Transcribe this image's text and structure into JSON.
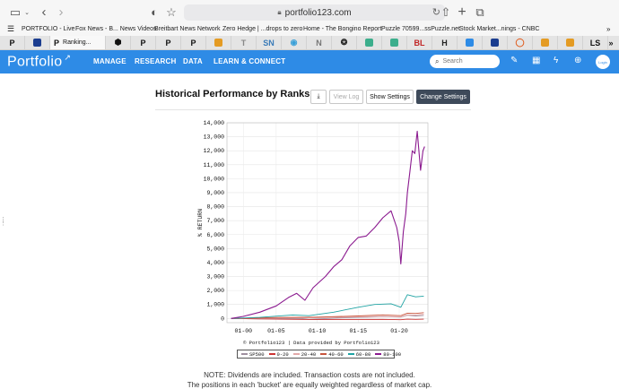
{
  "browser": {
    "url": "portfolio123.com",
    "bookmarks": [
      "PORTFOLIO - Live",
      "Fox News - B... News Videos",
      "Breitbart News Network",
      "Zero Hedge | ...drops to zero",
      "Home - The Bongino Report",
      "Puzzle 70599...ssPuzzle.net",
      "Stock Market...nings - CNBC"
    ],
    "tabs": [
      {
        "label": "P",
        "color": "#111111"
      },
      {
        "label": "",
        "color": "#1b3d8f"
      },
      {
        "label": "P",
        "color": "#111111",
        "active_label": "Ranking..."
      },
      {
        "label": "⬢",
        "color": "#111111"
      },
      {
        "label": "P",
        "color": "#111111"
      },
      {
        "label": "P",
        "color": "#111111"
      },
      {
        "label": "P",
        "color": "#111111"
      },
      {
        "label": "",
        "color": "#e49b23"
      },
      {
        "label": "T",
        "color": "#888888"
      },
      {
        "label": "SN",
        "color": "#3a7bb8"
      },
      {
        "label": "◉",
        "color": "#3aa0d8"
      },
      {
        "label": "N",
        "color": "#777777"
      },
      {
        "label": "❂",
        "color": "#222222"
      },
      {
        "label": "",
        "color": "#3cae8c"
      },
      {
        "label": "",
        "color": "#3cae8c"
      },
      {
        "label": "BL",
        "color": "#c02525"
      },
      {
        "label": "H",
        "color": "#222222"
      },
      {
        "label": "",
        "color": "#2e8be6"
      },
      {
        "label": "",
        "color": "#1b3d8f"
      },
      {
        "label": "◯",
        "color": "#e05a1b"
      },
      {
        "label": "",
        "color": "#e49b23"
      },
      {
        "label": "",
        "color": "#e49b23"
      },
      {
        "label": "LS",
        "color": "#111111"
      }
    ]
  },
  "nav": {
    "logo": "Portfolio",
    "items": [
      "MANAGE",
      "RESEARCH",
      "DATA",
      "LEARN & CONNECT"
    ],
    "search_placeholder": "Search",
    "avatar_text": "Login"
  },
  "page": {
    "title": "Historical Performance by Ranks",
    "buttons": {
      "download": "⤓",
      "view_log": "View Log",
      "show_settings": "Show Settings",
      "change_settings": "Change Settings"
    },
    "credit": "© Portfolio123 | Data provided by Portfolio123",
    "note_line1": "NOTE: Dividends are included. Transaction costs are not included.",
    "note_line2": "The positions in each 'bucket' are equally weighted regardless of market cap."
  },
  "chart_data": {
    "type": "line",
    "ylabel": "% RETURN",
    "ylim": [
      -300,
      14000
    ],
    "yticks": [
      0,
      1000,
      2000,
      3000,
      4000,
      5000,
      6000,
      7000,
      8000,
      9000,
      10000,
      11000,
      12000,
      13000,
      14000
    ],
    "ytick_labels": [
      "0",
      "1,000",
      "2,000",
      "3,000",
      "4,000",
      "5,000",
      "6,000",
      "7,000",
      "8,000",
      "9,000",
      "10,000",
      "11,000",
      "12,000",
      "13,000",
      "14,000"
    ],
    "xlim": [
      1999,
      2023.5
    ],
    "xticks": [
      2001,
      2005,
      2010,
      2015,
      2020
    ],
    "xtick_labels": [
      "01-00",
      "01-05",
      "01-10",
      "01-15",
      "01-20"
    ],
    "grid": true,
    "legend_position": "bottom",
    "series": [
      {
        "name": "SP500",
        "color": "#9f8f9f",
        "x": [
          1999.5,
          2003,
          2008,
          2009,
          2013,
          2016,
          2018,
          2020.2,
          2021,
          2022,
          2023
        ],
        "y": [
          0,
          -30,
          0,
          -60,
          40,
          90,
          130,
          100,
          230,
          180,
          220
        ]
      },
      {
        "name": "0-20",
        "color": "#cc3333",
        "x": [
          1999.5,
          2005,
          2010,
          2015,
          2018,
          2020.2,
          2021,
          2022,
          2023
        ],
        "y": [
          0,
          -50,
          -80,
          -70,
          -60,
          -90,
          -50,
          -60,
          -50
        ]
      },
      {
        "name": "20-40",
        "color": "#e3a9a9",
        "x": [
          1999.5,
          2005,
          2010,
          2015,
          2018,
          2020.2,
          2021,
          2022,
          2023
        ],
        "y": [
          0,
          40,
          50,
          110,
          150,
          120,
          260,
          250,
          300
        ]
      },
      {
        "name": "40-60",
        "color": "#c8553d",
        "x": [
          1999.5,
          2005,
          2010,
          2015,
          2018,
          2020.2,
          2021,
          2022,
          2023
        ],
        "y": [
          0,
          70,
          100,
          180,
          260,
          200,
          380,
          360,
          420
        ]
      },
      {
        "name": "60-80",
        "color": "#1fa3a3",
        "x": [
          1999.5,
          2003,
          2007,
          2009,
          2012,
          2015,
          2017,
          2019,
          2020.2,
          2021,
          2022,
          2023
        ],
        "y": [
          0,
          80,
          250,
          200,
          450,
          800,
          1000,
          1050,
          800,
          1700,
          1550,
          1600
        ]
      },
      {
        "name": "80-100",
        "color": "#8b1a8f",
        "x": [
          1999.5,
          2001,
          2003,
          2005,
          2006.5,
          2007.5,
          2008.5,
          2009.5,
          2011,
          2012,
          2013,
          2014,
          2015,
          2016,
          2017,
          2018,
          2019,
          2019.7,
          2020.0,
          2020.2,
          2020.5,
          2020.8,
          2021.0,
          2021.3,
          2021.6,
          2021.9,
          2022.2,
          2022.6,
          2022.9,
          2023.1
        ],
        "y": [
          0,
          150,
          450,
          900,
          1500,
          1800,
          1300,
          2200,
          3000,
          3700,
          4200,
          5200,
          5800,
          5900,
          6500,
          7200,
          7700,
          6500,
          5500,
          3900,
          6200,
          7500,
          9000,
          10500,
          12000,
          11800,
          13400,
          10600,
          12000,
          12300
        ]
      }
    ]
  }
}
